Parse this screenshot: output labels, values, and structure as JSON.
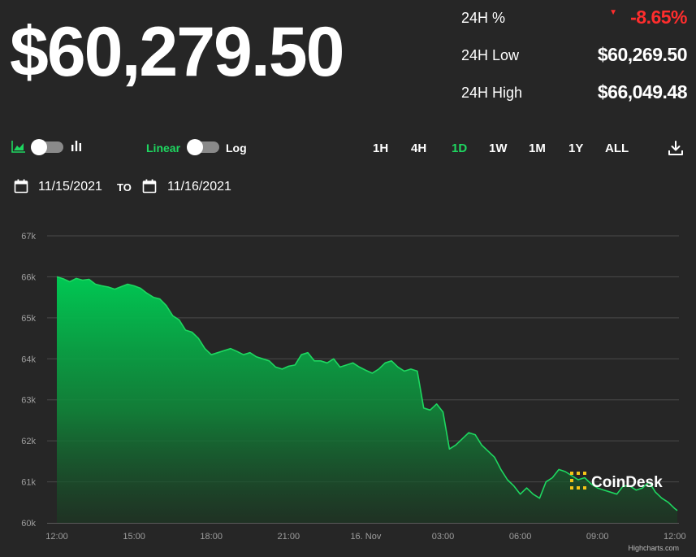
{
  "header": {
    "price": "$60,279.50",
    "stats": [
      {
        "label": "24H %",
        "value": "-8.65%",
        "status": "negative"
      },
      {
        "label": "24H Low",
        "value": "$60,269.50"
      },
      {
        "label": "24H High",
        "value": "$66,049.48"
      }
    ]
  },
  "controls": {
    "chart_type_icons": [
      "area-chart-icon",
      "bar-chart-icon"
    ],
    "scale_linear_label": "Linear",
    "scale_log_label": "Log",
    "ranges": [
      "1H",
      "4H",
      "1D",
      "1W",
      "1M",
      "1Y",
      "ALL"
    ],
    "active_range": "1D",
    "download_icon": "download-icon"
  },
  "dates": {
    "from": "11/15/2021",
    "to_label": "TO",
    "to": "11/16/2021"
  },
  "colors": {
    "accent_green": "#1ed760",
    "negative_red": "#ff2d2d",
    "background": "#262626"
  },
  "watermark": {
    "text": "CoinDesk"
  },
  "credits": "Highcharts.com",
  "chart_data": {
    "type": "area",
    "title": "",
    "xlabel": "",
    "ylabel": "",
    "ylim": [
      60000,
      67000
    ],
    "yticks": [
      60000,
      61000,
      62000,
      63000,
      64000,
      65000,
      66000,
      67000
    ],
    "ytick_labels": [
      "60k",
      "61k",
      "62k",
      "63k",
      "64k",
      "65k",
      "66k",
      "67k"
    ],
    "xlim_hours": [
      11.9,
      24.1
    ],
    "xticks": [
      {
        "hour": 12,
        "label": "12:00"
      },
      {
        "hour": 15,
        "label": "15:00"
      },
      {
        "hour": 18,
        "label": "18:00"
      },
      {
        "hour": 21,
        "label": "21:00"
      },
      {
        "hour": 24,
        "label": "16. Nov"
      },
      {
        "hour": 27,
        "label": "03:00"
      },
      {
        "hour": 30,
        "label": "06:00"
      },
      {
        "hour": 33,
        "label": "09:00"
      },
      {
        "hour": 36,
        "label": "12:00"
      }
    ],
    "grid": true,
    "legend": "none",
    "series": [
      {
        "values": [
          [
            12.0,
            66000
          ],
          [
            12.25,
            65950
          ],
          [
            12.5,
            65880
          ],
          [
            12.75,
            65960
          ],
          [
            13.0,
            65920
          ],
          [
            13.25,
            65940
          ],
          [
            13.5,
            65820
          ],
          [
            13.75,
            65780
          ],
          [
            14.0,
            65750
          ],
          [
            14.25,
            65700
          ],
          [
            14.5,
            65760
          ],
          [
            14.75,
            65820
          ],
          [
            15.0,
            65780
          ],
          [
            15.25,
            65720
          ],
          [
            15.5,
            65600
          ],
          [
            15.75,
            65500
          ],
          [
            16.0,
            65460
          ],
          [
            16.25,
            65300
          ],
          [
            16.5,
            65050
          ],
          [
            16.75,
            64950
          ],
          [
            17.0,
            64700
          ],
          [
            17.25,
            64650
          ],
          [
            17.5,
            64500
          ],
          [
            17.75,
            64250
          ],
          [
            18.0,
            64100
          ],
          [
            18.25,
            64150
          ],
          [
            18.5,
            64200
          ],
          [
            18.75,
            64250
          ],
          [
            19.0,
            64180
          ],
          [
            19.25,
            64100
          ],
          [
            19.5,
            64150
          ],
          [
            19.75,
            64050
          ],
          [
            20.0,
            64000
          ],
          [
            20.25,
            63950
          ],
          [
            20.5,
            63800
          ],
          [
            20.75,
            63750
          ],
          [
            21.0,
            63820
          ],
          [
            21.25,
            63850
          ],
          [
            21.5,
            64100
          ],
          [
            21.75,
            64150
          ],
          [
            22.0,
            63950
          ],
          [
            22.25,
            63950
          ],
          [
            22.5,
            63900
          ],
          [
            22.75,
            64000
          ],
          [
            23.0,
            63800
          ],
          [
            23.25,
            63850
          ],
          [
            23.5,
            63900
          ],
          [
            23.75,
            63800
          ],
          [
            24.0,
            63720
          ],
          [
            24.25,
            63650
          ],
          [
            24.5,
            63750
          ],
          [
            24.75,
            63900
          ],
          [
            25.0,
            63950
          ],
          [
            25.25,
            63800
          ],
          [
            25.5,
            63700
          ],
          [
            25.75,
            63750
          ],
          [
            26.0,
            63700
          ],
          [
            26.25,
            62800
          ],
          [
            26.5,
            62750
          ],
          [
            26.75,
            62900
          ],
          [
            27.0,
            62700
          ],
          [
            27.25,
            61800
          ],
          [
            27.5,
            61900
          ],
          [
            27.75,
            62050
          ],
          [
            28.0,
            62200
          ],
          [
            28.25,
            62150
          ],
          [
            28.5,
            61900
          ],
          [
            28.75,
            61750
          ],
          [
            29.0,
            61600
          ],
          [
            29.25,
            61300
          ],
          [
            29.5,
            61050
          ],
          [
            29.75,
            60900
          ],
          [
            30.0,
            60700
          ],
          [
            30.25,
            60850
          ],
          [
            30.5,
            60700
          ],
          [
            30.75,
            60600
          ],
          [
            31.0,
            61000
          ],
          [
            31.25,
            61100
          ],
          [
            31.5,
            61300
          ],
          [
            31.75,
            61250
          ],
          [
            32.0,
            61150
          ],
          [
            32.25,
            61050
          ],
          [
            32.5,
            61100
          ],
          [
            32.75,
            60950
          ],
          [
            33.0,
            60850
          ],
          [
            33.25,
            60800
          ],
          [
            33.5,
            60750
          ],
          [
            33.75,
            60700
          ],
          [
            34.0,
            60900
          ],
          [
            34.25,
            60900
          ],
          [
            34.5,
            60800
          ],
          [
            34.75,
            60850
          ],
          [
            35.0,
            61000
          ],
          [
            35.25,
            60750
          ],
          [
            35.5,
            60600
          ],
          [
            35.75,
            60500
          ],
          [
            36.0,
            60350
          ],
          [
            36.1,
            60300
          ]
        ]
      }
    ]
  }
}
